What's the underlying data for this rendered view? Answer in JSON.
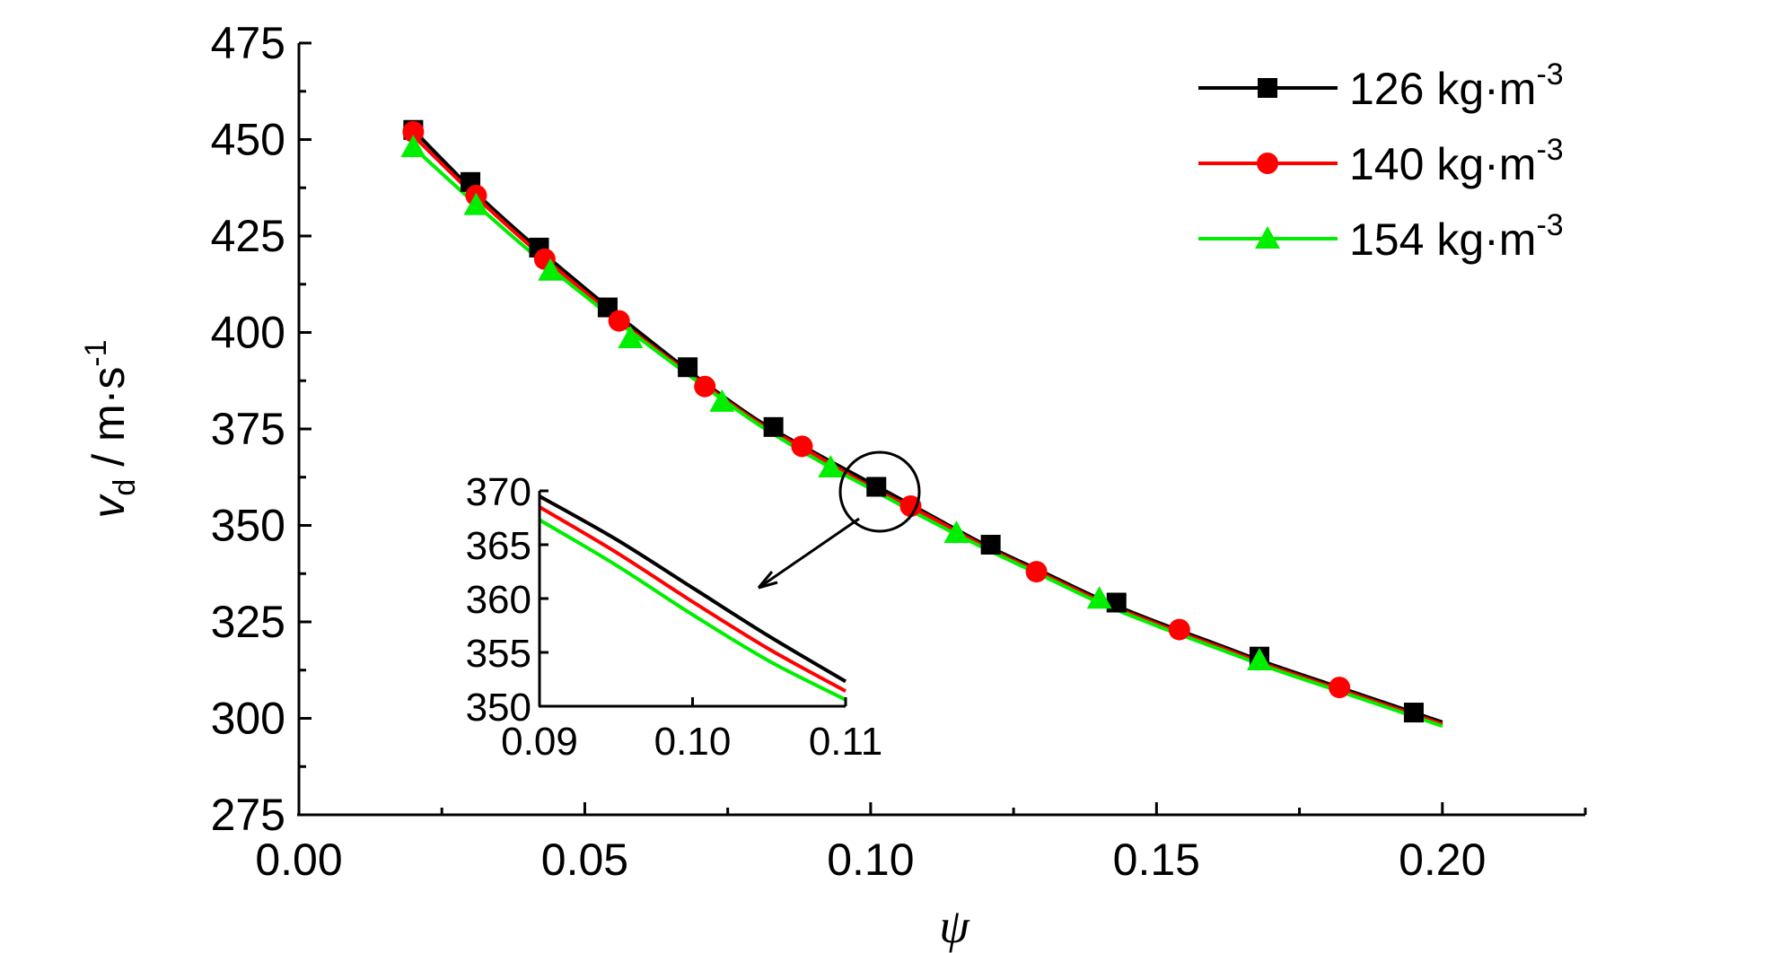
{
  "chart_data": {
    "type": "line",
    "xlabel": "ψ",
    "ylabel_main": "v",
    "ylabel_sub": "d",
    "ylabel_unit": " / m·s",
    "ylabel_sup": "-1",
    "xlim": [
      0.0,
      0.225
    ],
    "ylim": [
      275,
      475
    ],
    "xticks": [
      0.0,
      0.05,
      0.1,
      0.15,
      0.2
    ],
    "xtick_labels": [
      "0.00",
      "0.05",
      "0.10",
      "0.15",
      "0.20"
    ],
    "yticks": [
      275,
      300,
      325,
      350,
      375,
      400,
      425,
      450,
      475
    ],
    "ytick_labels": [
      "275",
      "300",
      "325",
      "350",
      "375",
      "400",
      "425",
      "450",
      "475"
    ],
    "legend_position": "top-right",
    "series": [
      {
        "name": "126 kg·m",
        "name_sup": "-3",
        "color": "#000000",
        "marker": "square",
        "x": [
          0.02,
          0.03,
          0.042,
          0.054,
          0.068,
          0.083,
          0.101,
          0.121,
          0.143,
          0.168,
          0.195
        ],
        "y": [
          452.5,
          439,
          422,
          406.5,
          391,
          375.5,
          360,
          345,
          330,
          316,
          301.5
        ],
        "line_x": [
          0.02,
          0.03,
          0.04,
          0.05,
          0.06,
          0.07,
          0.08,
          0.09,
          0.1,
          0.11,
          0.12,
          0.13,
          0.14,
          0.15,
          0.16,
          0.17,
          0.18,
          0.19,
          0.2
        ],
        "line_y": [
          452.5,
          437.5,
          424,
          411.5,
          399.5,
          388,
          377.5,
          369,
          361,
          353,
          345,
          338,
          331,
          325,
          319.5,
          314,
          309,
          304,
          299
        ]
      },
      {
        "name": "140 kg·m",
        "name_sup": "-3",
        "color": "#ff0000",
        "marker": "circle",
        "x": [
          0.02,
          0.031,
          0.043,
          0.056,
          0.071,
          0.088,
          0.107,
          0.129,
          0.154,
          0.182
        ],
        "y": [
          452,
          435.5,
          419,
          403,
          386,
          370.5,
          355,
          338,
          323,
          308
        ],
        "line_x": [
          0.02,
          0.03,
          0.04,
          0.05,
          0.06,
          0.07,
          0.08,
          0.09,
          0.1,
          0.11,
          0.12,
          0.13,
          0.14,
          0.15,
          0.16,
          0.17,
          0.18,
          0.19,
          0.2
        ],
        "line_y": [
          451,
          436.5,
          423,
          410.5,
          398.5,
          387.5,
          377,
          368.5,
          360,
          352.5,
          344.5,
          337.5,
          330.5,
          324.5,
          319,
          313.5,
          308.5,
          303.5,
          298.5
        ]
      },
      {
        "name": "154 kg·m",
        "name_sup": "-3",
        "color": "#00ee00",
        "marker": "triangle",
        "x": [
          0.02,
          0.031,
          0.044,
          0.058,
          0.074,
          0.093,
          0.115,
          0.14,
          0.168
        ],
        "y": [
          448,
          433,
          416,
          398.5,
          382,
          365,
          348,
          331,
          315
        ],
        "line_x": [
          0.02,
          0.03,
          0.04,
          0.05,
          0.06,
          0.07,
          0.08,
          0.09,
          0.1,
          0.11,
          0.12,
          0.13,
          0.14,
          0.15,
          0.16,
          0.17,
          0.18,
          0.19,
          0.2
        ],
        "line_y": [
          448,
          434.5,
          421.5,
          409.5,
          398,
          387,
          376.5,
          367.5,
          359.5,
          351.5,
          344,
          337,
          330,
          324,
          318.5,
          313,
          308,
          303,
          298
        ]
      }
    ],
    "inset": {
      "xlim": [
        0.09,
        0.11
      ],
      "ylim": [
        350,
        370
      ],
      "xticks": [
        0.09,
        0.1,
        0.11
      ],
      "xtick_labels": [
        "0.09",
        "0.10",
        "0.11"
      ],
      "yticks": [
        350,
        355,
        360,
        365,
        370
      ],
      "ytick_labels": [
        "350",
        "355",
        "360",
        "365",
        "370"
      ],
      "lines": [
        {
          "color": "#000000",
          "x": [
            0.09,
            0.095,
            0.1,
            0.105,
            0.11
          ],
          "y": [
            369.5,
            365.5,
            361.0,
            356.5,
            352.3
          ]
        },
        {
          "color": "#ff0000",
          "x": [
            0.09,
            0.095,
            0.1,
            0.105,
            0.11
          ],
          "y": [
            368.5,
            364.3,
            359.7,
            355.3,
            351.4
          ]
        },
        {
          "color": "#00ee00",
          "x": [
            0.09,
            0.095,
            0.1,
            0.105,
            0.11
          ],
          "y": [
            367.3,
            363.1,
            358.5,
            354.2,
            350.6
          ]
        }
      ]
    }
  }
}
